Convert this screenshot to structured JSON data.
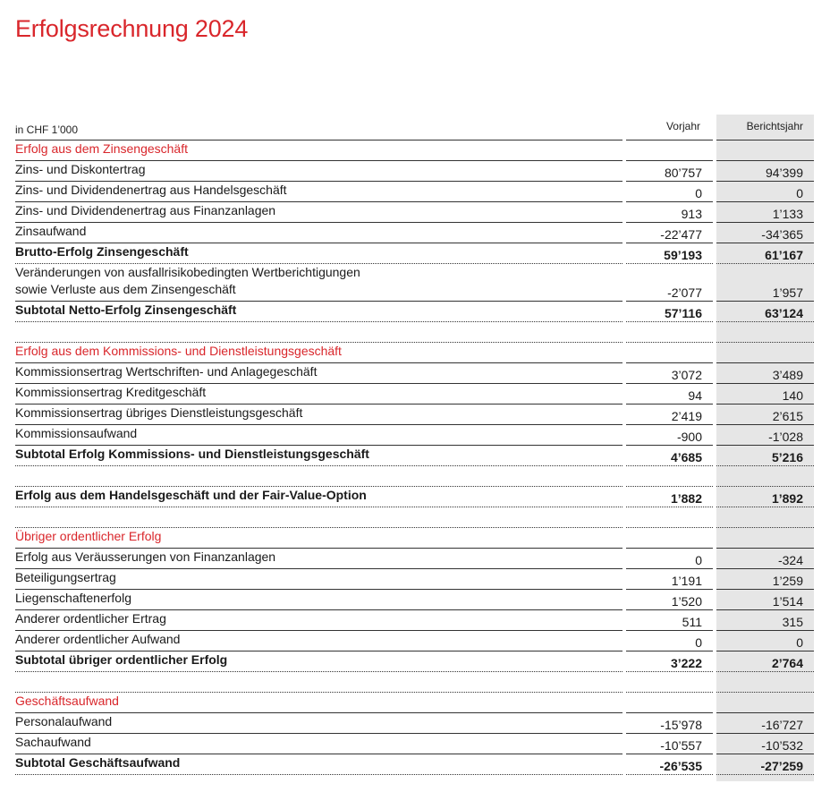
{
  "title": "Erfolgsrechnung 2024",
  "header": {
    "unit": "in CHF 1’000",
    "col_prev": "Vorjahr",
    "col_cur": "Berichtsjahr"
  },
  "rows": [
    {
      "label": "Erfolg aus dem Zinsengeschäft",
      "prev": "",
      "cur": "",
      "type": "section"
    },
    {
      "label": "Zins- und Diskontertrag",
      "prev": "80’757",
      "cur": "94’399",
      "type": "item"
    },
    {
      "label": "Zins- und Dividendenertrag aus Handelsgeschäft",
      "prev": "0",
      "cur": "0",
      "type": "item"
    },
    {
      "label": "Zins- und Dividendenertrag aus Finanzanlagen",
      "prev": "913",
      "cur": "1’133",
      "type": "item"
    },
    {
      "label": "Zinsaufwand",
      "prev": "-22’477",
      "cur": "-34’365",
      "type": "item"
    },
    {
      "label": "Brutto-Erfolg Zinsengeschäft",
      "prev": "59’193",
      "cur": "61’167",
      "type": "bold"
    },
    {
      "label": "Veränderungen von ausfallrisikobedingten Wertberichtigungen",
      "label2": "sowie Verluste aus dem Zinsengeschäft",
      "prev": "-2’077",
      "cur": "1’957",
      "type": "item2"
    },
    {
      "label": "Subtotal Netto-Erfolg Zinsengeschäft",
      "prev": "57’116",
      "cur": "63’124",
      "type": "bold"
    },
    {
      "label": "",
      "prev": "",
      "cur": "",
      "type": "spacer"
    },
    {
      "label": "Erfolg aus dem Kommissions- und Dienstleistungsgeschäft",
      "prev": "",
      "cur": "",
      "type": "section"
    },
    {
      "label": "Kommissionsertrag Wertschriften- und Anlagegeschäft",
      "prev": "3’072",
      "cur": "3’489",
      "type": "item"
    },
    {
      "label": "Kommissionsertrag Kreditgeschäft",
      "prev": "94",
      "cur": "140",
      "type": "item"
    },
    {
      "label": "Kommissionsertrag übriges Dienstleistungsgeschäft",
      "prev": "2’419",
      "cur": "2’615",
      "type": "item"
    },
    {
      "label": "Kommissionsaufwand",
      "prev": "-900",
      "cur": "-1’028",
      "type": "item"
    },
    {
      "label": "Subtotal Erfolg Kommissions- und Dienstleistungsgeschäft",
      "prev": "4’685",
      "cur": "5’216",
      "type": "bold"
    },
    {
      "label": "",
      "prev": "",
      "cur": "",
      "type": "spacer"
    },
    {
      "label": "Erfolg aus dem Handelsgeschäft und der Fair-Value-Option",
      "prev": "1’882",
      "cur": "1’892",
      "type": "bold"
    },
    {
      "label": "",
      "prev": "",
      "cur": "",
      "type": "spacer"
    },
    {
      "label": "Übriger ordentlicher Erfolg",
      "prev": "",
      "cur": "",
      "type": "section"
    },
    {
      "label": "Erfolg aus Veräusserungen von Finanzanlagen",
      "prev": "0",
      "cur": "-324",
      "type": "item"
    },
    {
      "label": "Beteiligungsertrag",
      "prev": "1’191",
      "cur": "1’259",
      "type": "item"
    },
    {
      "label": "Liegenschaftenerfolg",
      "prev": "1’520",
      "cur": "1’514",
      "type": "item"
    },
    {
      "label": "Anderer ordentlicher Ertrag",
      "prev": "511",
      "cur": "315",
      "type": "item"
    },
    {
      "label": "Anderer ordentlicher Aufwand",
      "prev": "0",
      "cur": "0",
      "type": "item"
    },
    {
      "label": "Subtotal übriger ordentlicher Erfolg",
      "prev": "3’222",
      "cur": "2’764",
      "type": "bold"
    },
    {
      "label": "",
      "prev": "",
      "cur": "",
      "type": "spacer"
    },
    {
      "label": "Geschäftsaufwand",
      "prev": "",
      "cur": "",
      "type": "section"
    },
    {
      "label": "Personalaufwand",
      "prev": "-15’978",
      "cur": "-16’727",
      "type": "item"
    },
    {
      "label": "Sachaufwand",
      "prev": "-10’557",
      "cur": "-10’532",
      "type": "item"
    },
    {
      "label": "Subtotal Geschäftsaufwand",
      "prev": "-26’535",
      "cur": "-27’259",
      "type": "bold"
    }
  ],
  "colors": {
    "accent": "#d9262b",
    "shade": "#e6e6e6",
    "text": "#1a1a1a"
  }
}
